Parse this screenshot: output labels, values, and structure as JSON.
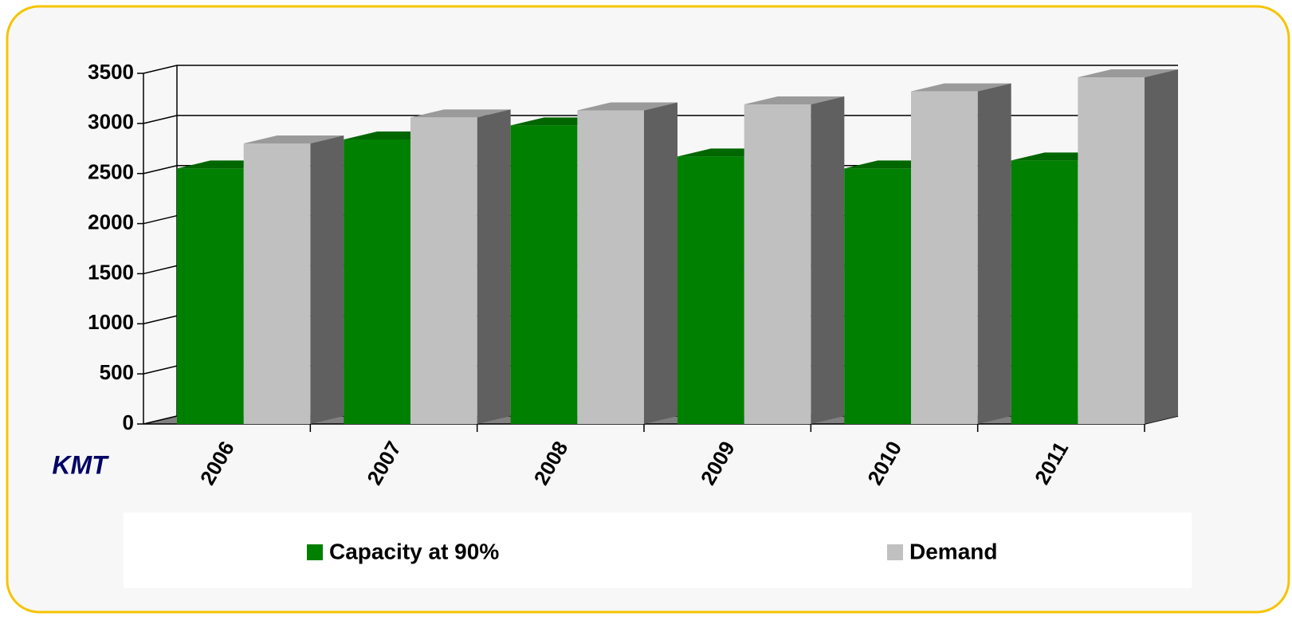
{
  "chart_data": {
    "type": "bar3d",
    "y_label": "KMT",
    "categories": [
      "2006",
      "2007",
      "2008",
      "2009",
      "2010",
      "2011"
    ],
    "series": [
      {
        "name": "Capacity at 90%",
        "color": "#008000",
        "values": [
          2550,
          2840,
          2980,
          2670,
          2550,
          2630
        ]
      },
      {
        "name": "Demand",
        "color": "#c0c0c0",
        "values": [
          2800,
          3060,
          3130,
          3190,
          3320,
          3460
        ]
      }
    ],
    "ylim": [
      0,
      3500
    ],
    "yticks": [
      0,
      500,
      1000,
      1500,
      2000,
      2500,
      3000,
      3500
    ],
    "grid": true
  }
}
